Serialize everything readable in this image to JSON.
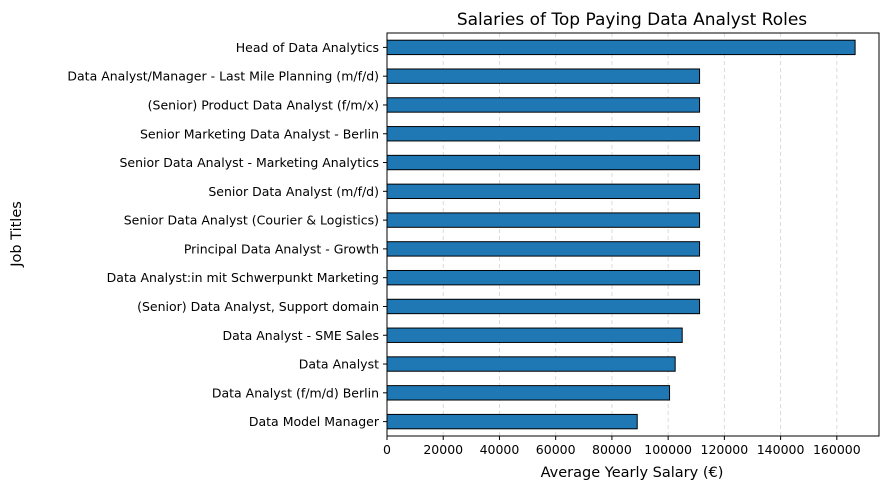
{
  "chart_data": {
    "type": "bar",
    "orientation": "horizontal",
    "title": "Salaries of Top Paying Data Analyst Roles",
    "xlabel": "Average Yearly Salary (€)",
    "ylabel": "Job Titles",
    "xlim": [
      0,
      175000
    ],
    "xticks": [
      0,
      20000,
      40000,
      60000,
      80000,
      100000,
      120000,
      140000,
      160000
    ],
    "grid": "x-axis dashed",
    "bar_color": "#1f77b4",
    "bar_edge_color": "#000000",
    "categories": [
      "Head of Data Analytics",
      "Data Analyst/Manager - Last Mile Planning (m/f/d)",
      "(Senior) Product Data Analyst (f/m/x)",
      "Senior Marketing Data Analyst - Berlin",
      "Senior Data Analyst -  Marketing Analytics",
      "Senior Data Analyst (m/f/d)",
      "Senior Data Analyst (Courier & Logistics)",
      "Principal Data Analyst - Growth",
      "Data Analyst:in mit Schwerpunkt Marketing",
      "(Senior) Data Analyst, Support domain",
      "Data Analyst - SME Sales",
      "Data Analyst",
      "Data Analyst (f/m/d) Berlin",
      "Data Model Manager"
    ],
    "values": [
      166500,
      111175,
      111175,
      111175,
      111175,
      111175,
      111175,
      111175,
      111175,
      111175,
      105000,
      102500,
      100500,
      89000
    ]
  }
}
